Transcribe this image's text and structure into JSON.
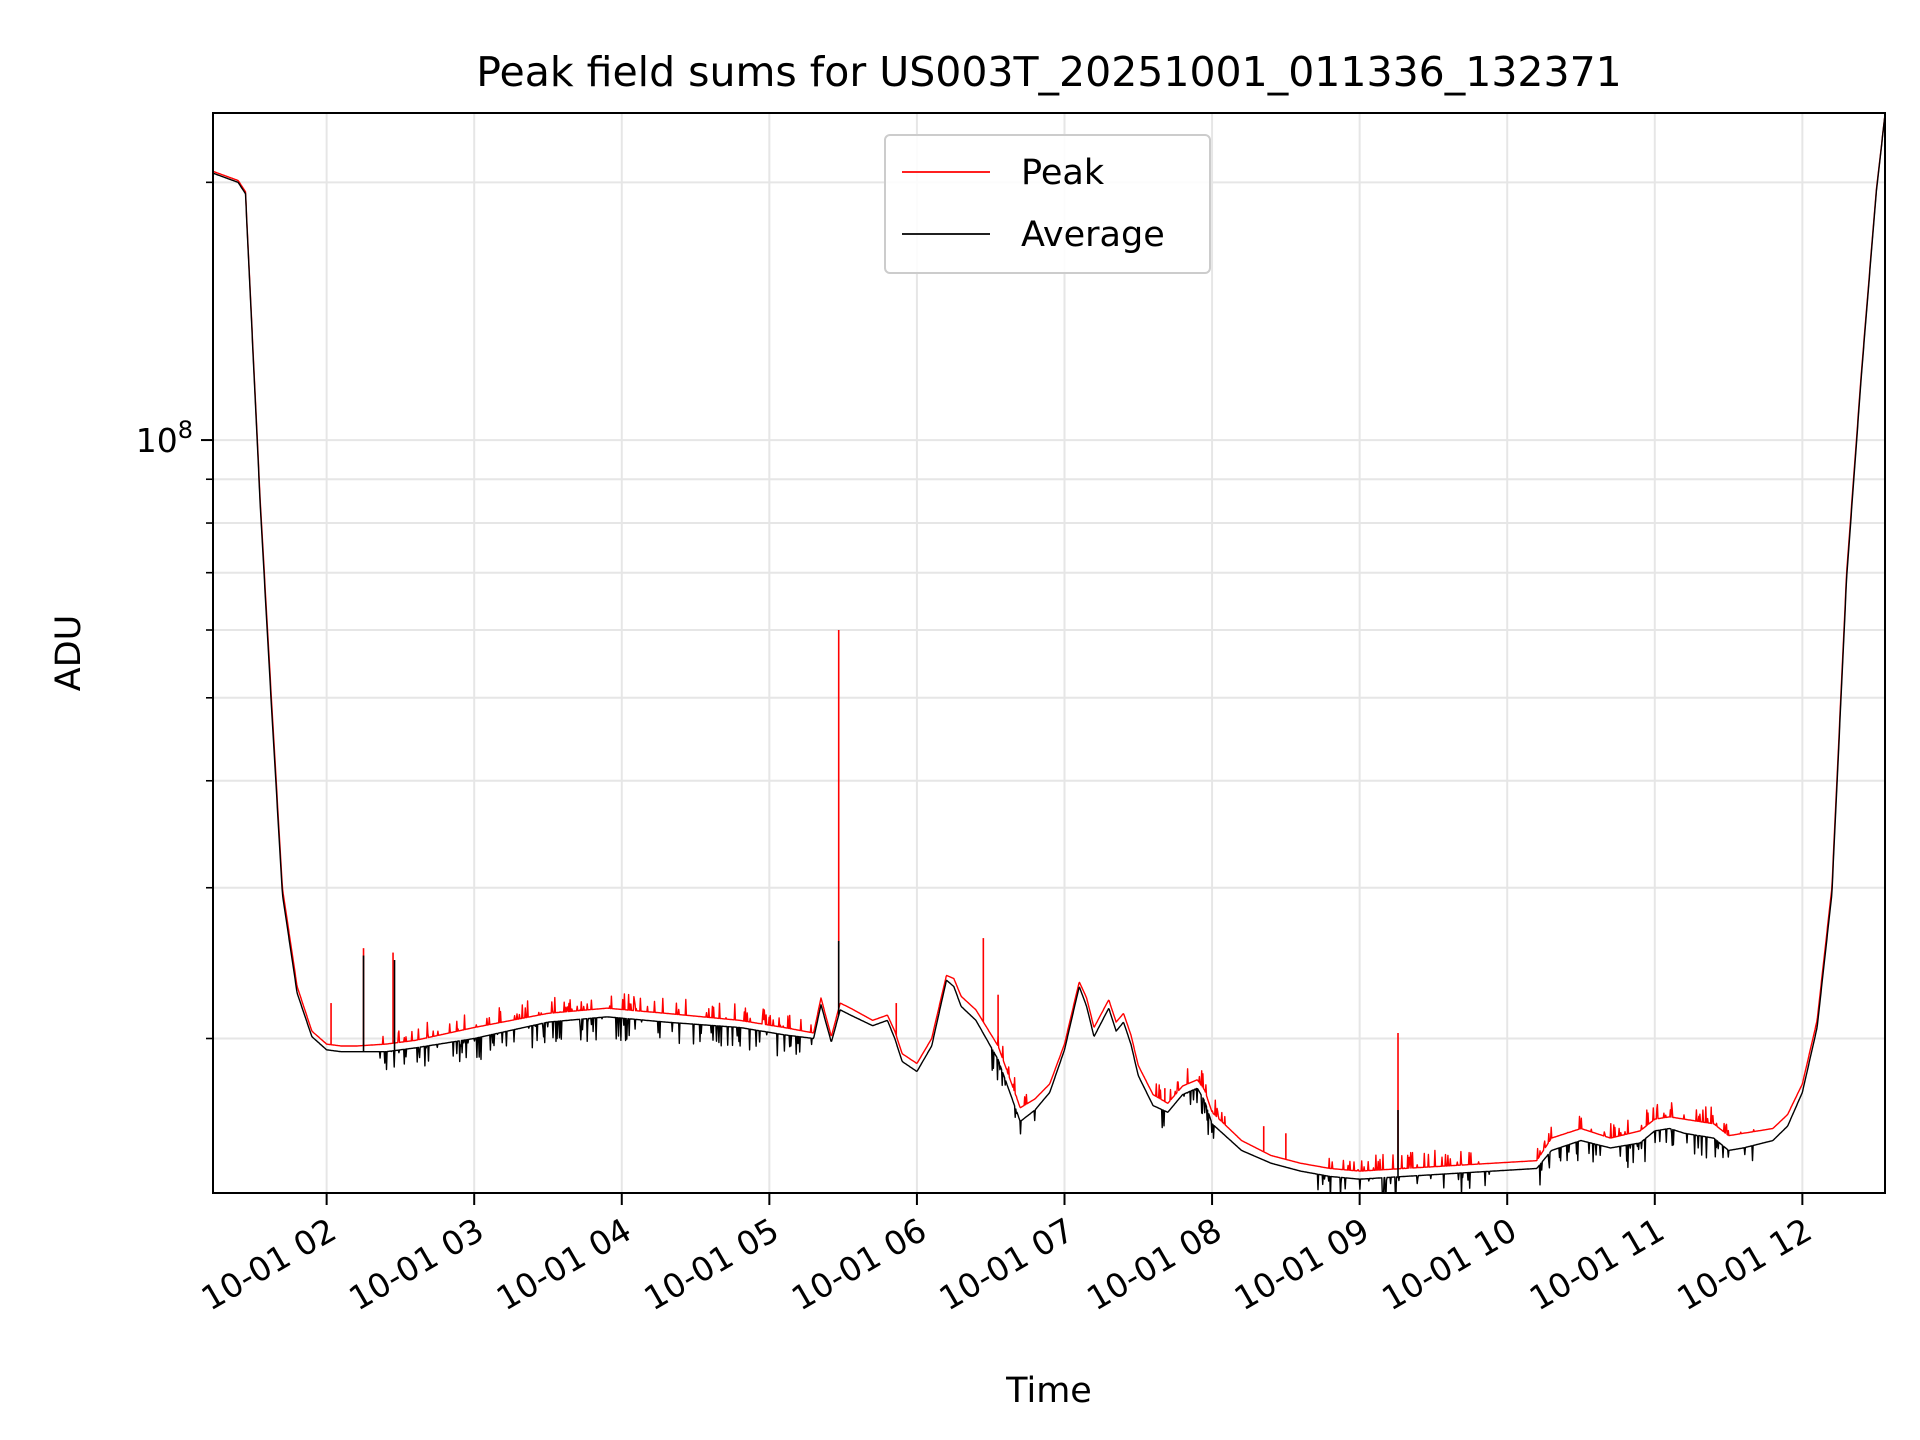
{
  "chart_data": {
    "type": "line",
    "title": "Peak field sums for US003T_20251001_011336_132371",
    "xlabel": "Time",
    "ylabel": "ADU",
    "yscale": "log",
    "ylim": [
      13200000,
      241000000
    ],
    "xlim": [
      1.23,
      12.56
    ],
    "x_ticks": [
      {
        "value": 2,
        "label": "10-01 02"
      },
      {
        "value": 3,
        "label": "10-01 03"
      },
      {
        "value": 4,
        "label": "10-01 04"
      },
      {
        "value": 5,
        "label": "10-01 05"
      },
      {
        "value": 6,
        "label": "10-01 06"
      },
      {
        "value": 7,
        "label": "10-01 07"
      },
      {
        "value": 8,
        "label": "10-01 08"
      },
      {
        "value": 9,
        "label": "10-01 09"
      },
      {
        "value": 10,
        "label": "10-01 10"
      },
      {
        "value": 11,
        "label": "10-01 11"
      },
      {
        "value": 12,
        "label": "10-01 12"
      }
    ],
    "y_major_ticks": [
      {
        "value": 100000000,
        "base": "10",
        "exponent": "8"
      }
    ],
    "y_minor_ticks": [
      20000000,
      30000000,
      40000000,
      50000000,
      60000000,
      70000000,
      80000000,
      90000000,
      200000000
    ],
    "grid": true,
    "legend_position": "top-center",
    "series": [
      {
        "name": "Peak",
        "color": "#ff0000",
        "x": [
          1.23,
          1.4,
          1.45,
          1.55,
          1.62,
          1.7,
          1.8,
          1.9,
          2.0,
          2.1,
          2.2,
          2.4,
          2.6,
          3.0,
          3.5,
          3.9,
          4.3,
          4.8,
          5.1,
          5.3,
          5.35,
          5.42,
          5.48,
          5.55,
          5.7,
          5.8,
          5.85,
          5.9,
          6.0,
          6.1,
          6.2,
          6.25,
          6.3,
          6.4,
          6.55,
          6.7,
          6.8,
          6.9,
          7.0,
          7.1,
          7.15,
          7.2,
          7.3,
          7.35,
          7.4,
          7.45,
          7.5,
          7.6,
          7.7,
          7.8,
          7.9,
          7.95,
          8.0,
          8.2,
          8.4,
          8.6,
          8.8,
          9.0,
          9.3,
          9.6,
          9.9,
          10.2,
          10.3,
          10.5,
          10.7,
          10.9,
          11.0,
          11.1,
          11.2,
          11.4,
          11.5,
          11.6,
          11.8,
          11.9,
          12.0,
          12.1,
          12.2,
          12.3,
          12.4,
          12.5,
          12.56
        ],
        "y": [
          206000000,
          201000000,
          195000000,
          85000000,
          52000000,
          30000000,
          23000000,
          20400000,
          19700000,
          19600000,
          19600000,
          19700000,
          19900000,
          20600000,
          21400000,
          21700000,
          21400000,
          21000000,
          20600000,
          20300000,
          22300000,
          20100000,
          22000000,
          21700000,
          21000000,
          21300000,
          20400000,
          19200000,
          18700000,
          20000000,
          23700000,
          23500000,
          22400000,
          21600000,
          19600000,
          16600000,
          17000000,
          17700000,
          19700000,
          23300000,
          22300000,
          20600000,
          22200000,
          20900000,
          21400000,
          20200000,
          18600000,
          17200000,
          16800000,
          17600000,
          17900000,
          17400000,
          16400000,
          15200000,
          14600000,
          14300000,
          14100000,
          14000000,
          14100000,
          14200000,
          14300000,
          14400000,
          15300000,
          15700000,
          15300000,
          15600000,
          16100000,
          16200000,
          16100000,
          15900000,
          15400000,
          15500000,
          15700000,
          16300000,
          17700000,
          21000000,
          30000000,
          70000000,
          120000000,
          195000000,
          240000000
        ]
      },
      {
        "name": "Average",
        "color": "#000000",
        "x": [
          1.23,
          1.4,
          1.45,
          1.55,
          1.62,
          1.7,
          1.8,
          1.9,
          2.0,
          2.1,
          2.2,
          2.4,
          2.6,
          3.0,
          3.5,
          3.9,
          4.3,
          4.8,
          5.1,
          5.3,
          5.35,
          5.42,
          5.48,
          5.55,
          5.7,
          5.8,
          5.85,
          5.9,
          6.0,
          6.1,
          6.2,
          6.25,
          6.3,
          6.4,
          6.55,
          6.7,
          6.8,
          6.9,
          7.0,
          7.1,
          7.15,
          7.2,
          7.3,
          7.35,
          7.4,
          7.45,
          7.5,
          7.6,
          7.7,
          7.8,
          7.9,
          7.95,
          8.0,
          8.2,
          8.4,
          8.6,
          8.8,
          9.0,
          9.3,
          9.6,
          9.9,
          10.2,
          10.3,
          10.5,
          10.7,
          10.9,
          11.0,
          11.1,
          11.2,
          11.4,
          11.5,
          11.6,
          11.8,
          11.9,
          12.0,
          12.1,
          12.2,
          12.3,
          12.4,
          12.5,
          12.56
        ],
        "y": [
          205000000,
          200000000,
          194000000,
          84000000,
          51000000,
          29500000,
          22600000,
          20100000,
          19400000,
          19300000,
          19300000,
          19300000,
          19500000,
          20000000,
          20900000,
          21200000,
          20900000,
          20600000,
          20200000,
          20000000,
          21900000,
          19800000,
          21600000,
          21300000,
          20700000,
          21000000,
          20000000,
          18800000,
          18300000,
          19600000,
          23400000,
          23000000,
          21800000,
          21000000,
          18900000,
          16000000,
          16500000,
          17300000,
          19400000,
          23000000,
          21800000,
          20100000,
          21700000,
          20400000,
          20900000,
          19700000,
          18100000,
          16700000,
          16400000,
          17200000,
          17500000,
          16900000,
          15900000,
          14800000,
          14300000,
          14000000,
          13800000,
          13700000,
          13800000,
          13900000,
          14000000,
          14100000,
          14800000,
          15200000,
          14900000,
          15100000,
          15600000,
          15700000,
          15500000,
          15300000,
          14800000,
          14900000,
          15200000,
          15800000,
          17300000,
          20600000,
          29500000,
          69000000,
          119000000,
          194000000,
          240000000
        ]
      }
    ],
    "spikes": [
      {
        "x": 2.03,
        "y": 22000000,
        "series": "Peak"
      },
      {
        "x": 2.25,
        "y": 25500000,
        "series": "Peak"
      },
      {
        "x": 2.25,
        "y": 25000000,
        "series": "Average"
      },
      {
        "x": 2.45,
        "y": 25200000,
        "series": "Peak"
      },
      {
        "x": 2.46,
        "y": 24700000,
        "series": "Average"
      },
      {
        "x": 5.47,
        "y": 60000000,
        "series": "Peak"
      },
      {
        "x": 5.47,
        "y": 26000000,
        "series": "Average"
      },
      {
        "x": 5.86,
        "y": 22000000,
        "series": "Peak"
      },
      {
        "x": 6.45,
        "y": 26200000,
        "series": "Peak"
      },
      {
        "x": 6.55,
        "y": 22500000,
        "series": "Peak"
      },
      {
        "x": 7.68,
        "y": 17500000,
        "series": "Peak"
      },
      {
        "x": 8.35,
        "y": 15800000,
        "series": "Peak"
      },
      {
        "x": 8.5,
        "y": 15500000,
        "series": "Peak"
      },
      {
        "x": 9.26,
        "y": 20300000,
        "series": "Peak"
      },
      {
        "x": 9.26,
        "y": 16500000,
        "series": "Average"
      }
    ]
  }
}
